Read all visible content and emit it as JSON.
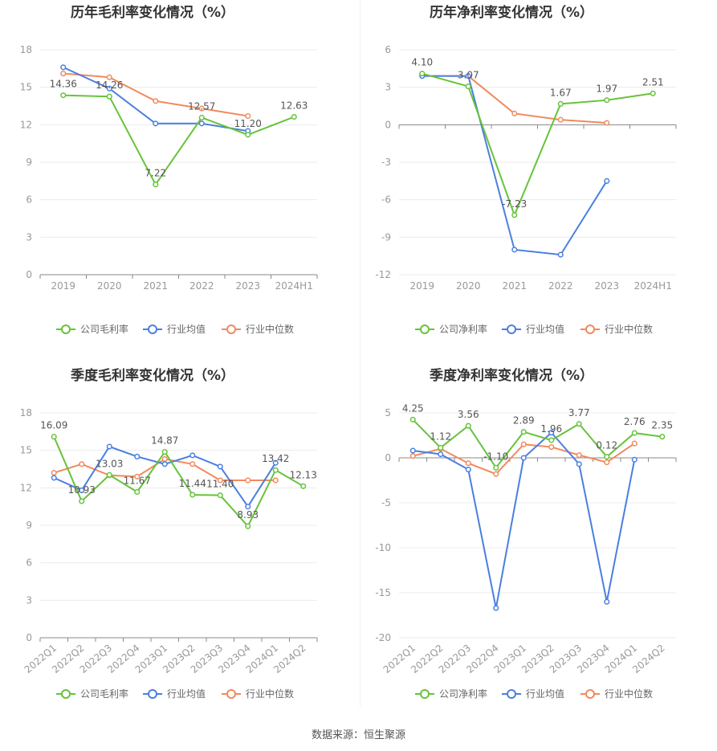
{
  "source": "数据来源：恒生聚源",
  "colors": {
    "company": "#66c33a",
    "avg": "#4a7fe0",
    "median": "#f08a5d"
  },
  "chart_data": [
    {
      "type": "line",
      "title": "历年毛利率变化情况（%）",
      "categories": [
        "2019",
        "2020",
        "2021",
        "2022",
        "2023",
        "2024H1"
      ],
      "ylim": [
        0,
        18
      ],
      "yticks": [
        0,
        3,
        6,
        9,
        12,
        15,
        18
      ],
      "rotate_x": false,
      "legend": "bottom",
      "grid": true,
      "series": [
        {
          "name": "公司毛利率",
          "key": "company",
          "values": [
            14.36,
            14.26,
            7.22,
            12.57,
            11.2,
            12.63
          ],
          "labels": [
            "14.36",
            "14.26",
            "7.22",
            "12.57",
            "11.20",
            "12.63"
          ]
        },
        {
          "name": "行业均值",
          "key": "avg",
          "values": [
            16.6,
            14.9,
            12.1,
            12.1,
            11.5,
            null
          ]
        },
        {
          "name": "行业中位数",
          "key": "median",
          "values": [
            16.1,
            15.8,
            13.9,
            13.3,
            12.7,
            null
          ]
        }
      ]
    },
    {
      "type": "line",
      "title": "历年净利率变化情况（%）",
      "categories": [
        "2019",
        "2020",
        "2021",
        "2022",
        "2023",
        "2024H1"
      ],
      "ylim": [
        -12,
        6
      ],
      "yticks": [
        -12,
        -9,
        -6,
        -3,
        0,
        3,
        6
      ],
      "rotate_x": false,
      "legend": "bottom",
      "grid": true,
      "series": [
        {
          "name": "公司净利率",
          "key": "company",
          "values": [
            4.1,
            3.07,
            -7.23,
            1.67,
            1.97,
            2.51
          ],
          "labels": [
            "4.10",
            "3.07",
            "-7.23",
            "1.67",
            "1.97",
            "2.51"
          ]
        },
        {
          "name": "行业均值",
          "key": "avg",
          "values": [
            3.9,
            3.9,
            -10.0,
            -10.4,
            -4.5,
            null
          ]
        },
        {
          "name": "行业中位数",
          "key": "median",
          "values": [
            3.9,
            3.9,
            0.9,
            0.4,
            0.15,
            null
          ]
        }
      ]
    },
    {
      "type": "line",
      "title": "季度毛利率变化情况（%）",
      "categories": [
        "2022Q1",
        "2022Q2",
        "2022Q3",
        "2022Q4",
        "2023Q1",
        "2023Q2",
        "2023Q3",
        "2023Q4",
        "2024Q1",
        "2024Q2"
      ],
      "ylim": [
        0,
        18
      ],
      "yticks": [
        0,
        3,
        6,
        9,
        12,
        15,
        18
      ],
      "rotate_x": true,
      "legend": "bottom",
      "grid": true,
      "series": [
        {
          "name": "公司毛利率",
          "key": "company",
          "values": [
            16.09,
            10.93,
            13.03,
            11.67,
            14.87,
            11.44,
            11.4,
            8.93,
            13.42,
            12.13
          ],
          "labels": [
            "16.09",
            "10.93",
            "13.03",
            "11.67",
            "14.87",
            "11.44",
            "11.40",
            "8.93",
            "13.42",
            "12.13"
          ]
        },
        {
          "name": "行业均值",
          "key": "avg",
          "values": [
            12.8,
            11.8,
            15.3,
            14.5,
            13.9,
            14.6,
            13.7,
            10.5,
            14.0,
            null
          ]
        },
        {
          "name": "行业中位数",
          "key": "median",
          "values": [
            13.2,
            13.9,
            13.0,
            12.9,
            14.3,
            13.9,
            12.6,
            12.6,
            12.6,
            null
          ]
        }
      ]
    },
    {
      "type": "line",
      "title": "季度净利率变化情况（%）",
      "categories": [
        "2022Q1",
        "2022Q2",
        "2022Q3",
        "2022Q4",
        "2023Q1",
        "2023Q2",
        "2023Q3",
        "2023Q4",
        "2024Q1",
        "2024Q2"
      ],
      "ylim": [
        -20,
        5
      ],
      "yticks": [
        -20,
        -15,
        -10,
        -5,
        0,
        5
      ],
      "rotate_x": true,
      "legend": "bottom",
      "grid": true,
      "series": [
        {
          "name": "公司净利率",
          "key": "company",
          "values": [
            4.25,
            1.12,
            3.56,
            -1.1,
            2.89,
            1.96,
            3.77,
            0.12,
            2.76,
            2.35
          ],
          "labels": [
            "4.25",
            "1.12",
            "3.56",
            "-1.10",
            "2.89",
            "1.96",
            "3.77",
            "0.12",
            "2.76",
            "2.35"
          ]
        },
        {
          "name": "行业均值",
          "key": "avg",
          "values": [
            0.8,
            0.4,
            -1.3,
            -16.7,
            0.0,
            2.8,
            -0.7,
            -16.0,
            -0.2,
            null
          ]
        },
        {
          "name": "行业中位数",
          "key": "median",
          "values": [
            0.2,
            1.0,
            -0.6,
            -1.8,
            1.5,
            1.2,
            0.3,
            -0.5,
            1.6,
            null
          ]
        }
      ]
    }
  ]
}
